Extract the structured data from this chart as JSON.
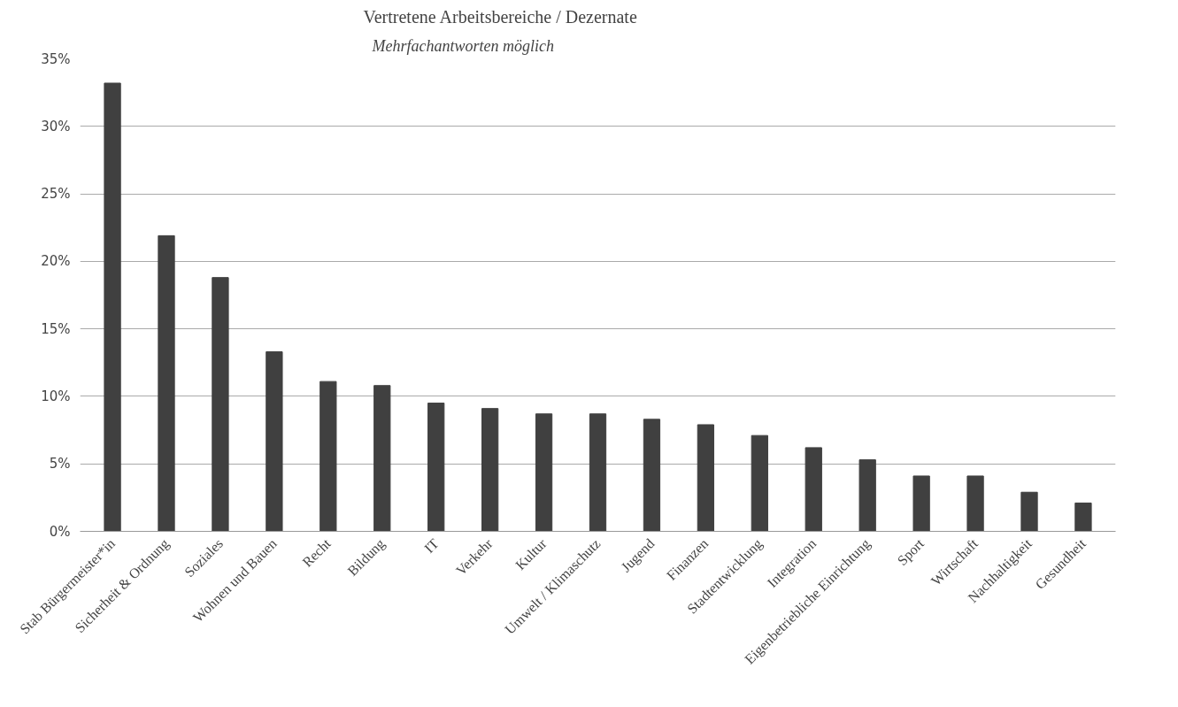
{
  "chart_data": {
    "type": "bar",
    "title": "Vertretene Arbeitsbereiche / Dezernate",
    "subtitle": "Mehrfachantworten möglich",
    "categories": [
      "Stab Bürgermeister*in",
      "Sicherheit & Ordnung",
      "Soziales",
      "Wohnen und Bauen",
      "Recht",
      "Bildung",
      "IT",
      "Verkehr",
      "Kultur",
      "Umwelt / Klimaschutz",
      "Jugend",
      "Finanzen",
      "Stadtentwicklung",
      "Integration",
      "Eigenbetriebliche Einrichtung",
      "Sport",
      "Wirtschaft",
      "Nachhaltigkeit",
      "Gesundheit"
    ],
    "values": [
      33.2,
      21.9,
      18.8,
      13.3,
      11.1,
      10.8,
      9.5,
      9.1,
      8.7,
      8.7,
      8.3,
      7.9,
      7.1,
      6.2,
      5.3,
      4.1,
      4.1,
      2.9,
      2.1
    ],
    "color": "#404040",
    "ylim": [
      0,
      35
    ],
    "yticks": [
      {
        "value": 0,
        "label": "0%"
      },
      {
        "value": 5,
        "label": "5%"
      },
      {
        "value": 10,
        "label": "10%"
      },
      {
        "value": 15,
        "label": "15%"
      },
      {
        "value": 20,
        "label": "20%"
      },
      {
        "value": 25,
        "label": "25%"
      },
      {
        "value": 30,
        "label": "30%"
      },
      {
        "value": 35,
        "label": "35%"
      }
    ],
    "grid": "y"
  }
}
